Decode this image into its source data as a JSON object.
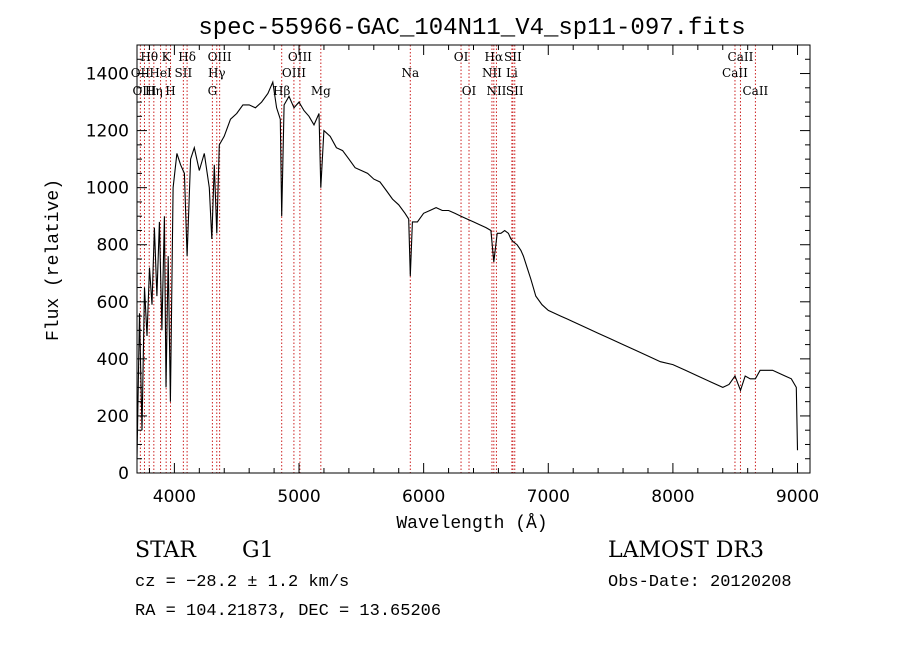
{
  "chart_data": {
    "type": "line",
    "title": "spec-55966-GAC_104N11_V4_sp11-097.fits",
    "xlabel": "Wavelength (Å)",
    "ylabel": "Flux (relative)",
    "xlim": [
      3700,
      9100
    ],
    "ylim": [
      0,
      1500
    ],
    "xticks": [
      4000,
      5000,
      6000,
      7000,
      8000,
      9000
    ],
    "yticks": [
      0,
      200,
      400,
      600,
      800,
      1000,
      1200,
      1400
    ],
    "series": [
      {
        "name": "flux",
        "x": [
          3700,
          3720,
          3740,
          3760,
          3780,
          3800,
          3820,
          3840,
          3860,
          3880,
          3900,
          3920,
          3933,
          3950,
          3968,
          3990,
          4020,
          4050,
          4080,
          4102,
          4130,
          4160,
          4200,
          4240,
          4280,
          4300,
          4320,
          4340,
          4360,
          4400,
          4450,
          4500,
          4550,
          4600,
          4650,
          4700,
          4750,
          4790,
          4820,
          4850,
          4861,
          4880,
          4920,
          4960,
          5000,
          5040,
          5080,
          5120,
          5160,
          5175,
          5200,
          5250,
          5300,
          5350,
          5400,
          5450,
          5500,
          5550,
          5600,
          5650,
          5700,
          5750,
          5800,
          5850,
          5880,
          5893,
          5910,
          5950,
          6000,
          6050,
          6100,
          6150,
          6200,
          6250,
          6300,
          6350,
          6400,
          6450,
          6500,
          6540,
          6563,
          6590,
          6620,
          6650,
          6680,
          6700,
          6720,
          6750,
          6780,
          6800,
          6830,
          6860,
          6880,
          6900,
          6950,
          7000,
          7050,
          7100,
          7150,
          7200,
          7300,
          7400,
          7500,
          7600,
          7700,
          7800,
          7900,
          8000,
          8100,
          8200,
          8300,
          8400,
          8450,
          8498,
          8542,
          8580,
          8620,
          8662,
          8700,
          8750,
          8800,
          8850,
          8900,
          8950,
          8990,
          9000
        ],
        "y": [
          50,
          560,
          150,
          650,
          480,
          720,
          590,
          860,
          620,
          880,
          500,
          900,
          300,
          760,
          250,
          1000,
          1120,
          1080,
          1050,
          760,
          1100,
          1140,
          1060,
          1120,
          1000,
          820,
          1080,
          840,
          1150,
          1180,
          1240,
          1260,
          1290,
          1290,
          1280,
          1300,
          1330,
          1370,
          1280,
          1240,
          900,
          1290,
          1320,
          1280,
          1300,
          1270,
          1250,
          1220,
          1260,
          1000,
          1200,
          1180,
          1140,
          1130,
          1100,
          1070,
          1060,
          1050,
          1030,
          1020,
          990,
          960,
          940,
          910,
          890,
          690,
          880,
          880,
          910,
          920,
          930,
          920,
          920,
          910,
          900,
          890,
          880,
          870,
          860,
          850,
          740,
          840,
          840,
          850,
          840,
          820,
          810,
          800,
          780,
          760,
          720,
          680,
          650,
          620,
          590,
          570,
          560,
          550,
          540,
          530,
          510,
          490,
          470,
          450,
          430,
          410,
          390,
          380,
          360,
          340,
          320,
          300,
          310,
          340,
          290,
          340,
          330,
          330,
          360,
          360,
          360,
          350,
          340,
          330,
          300,
          80
        ]
      }
    ],
    "lines": [
      {
        "name": "Hθ",
        "x": 3798,
        "row": 1
      },
      {
        "name": "OII",
        "x": 3727,
        "row": 2
      },
      {
        "name": "OIII",
        "x": 3760,
        "row": 3
      },
      {
        "name": "Hη",
        "x": 3835,
        "row": 3
      },
      {
        "name": "HeI",
        "x": 3889,
        "row": 2
      },
      {
        "name": "K",
        "x": 3934,
        "row": 1
      },
      {
        "name": "SII",
        "x": 4072,
        "row": 2
      },
      {
        "name": "H",
        "x": 3969,
        "row": 3
      },
      {
        "name": "Hδ",
        "x": 4102,
        "row": 1
      },
      {
        "name": "OIII",
        "x": 4363,
        "row": 1
      },
      {
        "name": "Hγ",
        "x": 4340,
        "row": 2
      },
      {
        "name": "G",
        "x": 4305,
        "row": 3
      },
      {
        "name": "OIII",
        "x": 5007,
        "row": 1
      },
      {
        "name": "OIII",
        "x": 4959,
        "row": 2
      },
      {
        "name": "Hβ",
        "x": 4861,
        "row": 3
      },
      {
        "name": "Mg",
        "x": 5175,
        "row": 3
      },
      {
        "name": "Na",
        "x": 5893,
        "row": 2
      },
      {
        "name": "OI",
        "x": 6300,
        "row": 1
      },
      {
        "name": "OI",
        "x": 6364,
        "row": 3
      },
      {
        "name": "Hα",
        "x": 6563,
        "row": 1
      },
      {
        "name": "SII",
        "x": 6716,
        "row": 1
      },
      {
        "name": "NII",
        "x": 6548,
        "row": 2
      },
      {
        "name": "Li",
        "x": 6708,
        "row": 2
      },
      {
        "name": "NII",
        "x": 6584,
        "row": 3
      },
      {
        "name": "SII",
        "x": 6731,
        "row": 3
      },
      {
        "name": "CaII",
        "x": 8542,
        "row": 1
      },
      {
        "name": "CaII",
        "x": 8498,
        "row": 2
      },
      {
        "name": "CaII",
        "x": 8662,
        "row": 3
      }
    ]
  },
  "info": {
    "class": "STAR",
    "subclass": "G1",
    "survey": "LAMOST DR3",
    "cz": "cz = −28.2 ± 1.2 km/s",
    "obs_date": "Obs-Date: 20120208",
    "radec": "RA = 104.21873, DEC =  13.65206"
  },
  "colors": {
    "line_marker": "#cc2222",
    "spectrum": "#000000"
  }
}
